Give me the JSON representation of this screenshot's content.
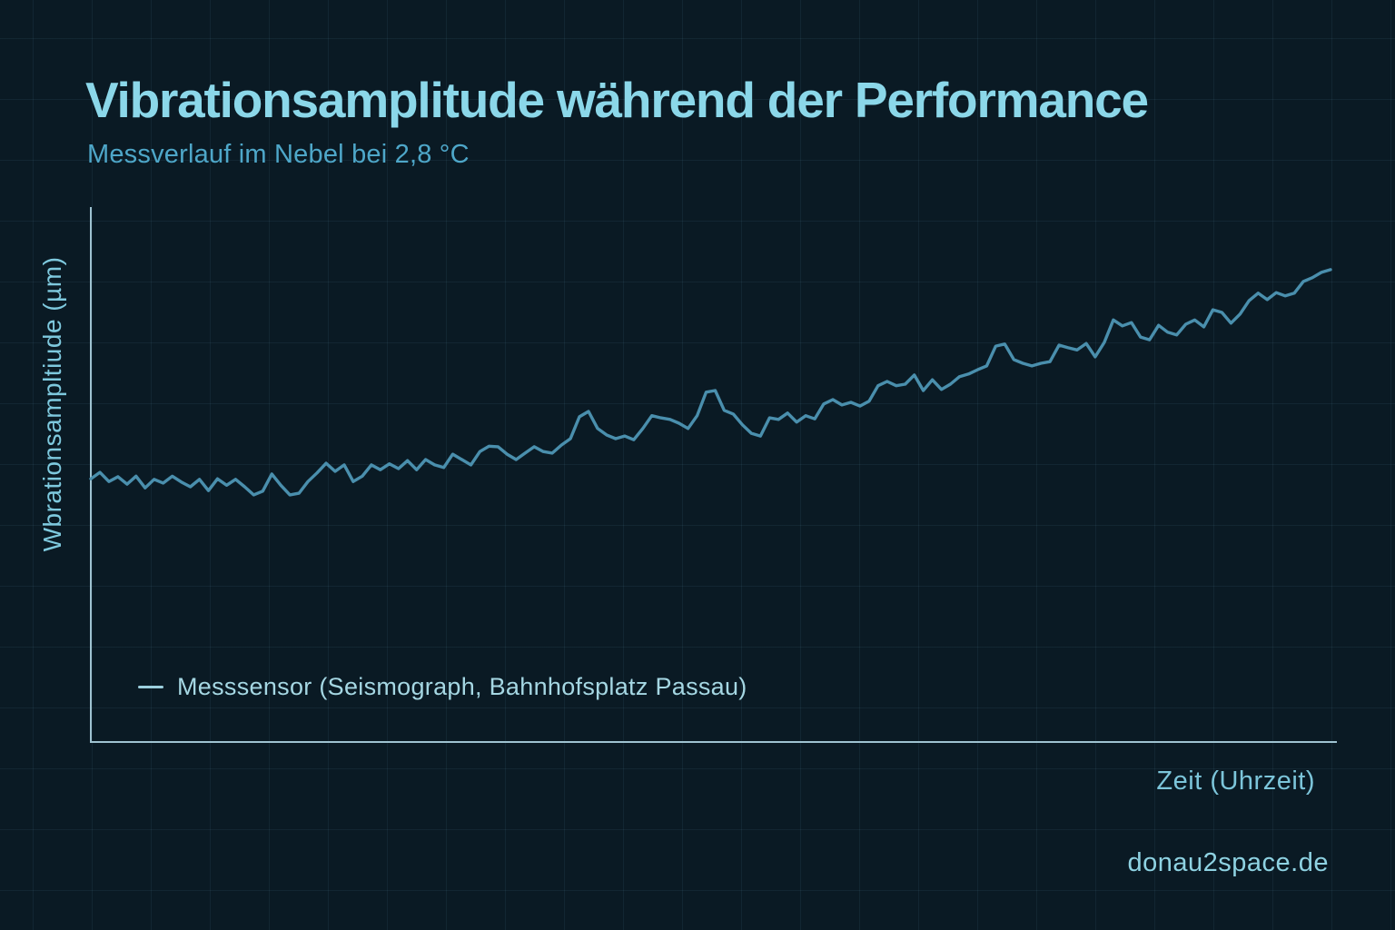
{
  "header": {
    "title": "Vibrationsamplitude während der Performance",
    "subtitle": "Messverlauf im Nebel bei 2,8 °C"
  },
  "chart": {
    "y_axis_label": "Wbrationsampltiude (µm)",
    "x_axis_label": "Zeit (Uhrzeit)",
    "legend": [
      {
        "label": "Messsensor (Seismograph, Bahnhofsplatz Passau)",
        "marker": "line-dash",
        "marker_color": "#9ccfde"
      }
    ]
  },
  "footer": {
    "website": "donau2space.de"
  },
  "colors": {
    "background": "#0a1a24",
    "grid": "rgba(122,184,214,0.08)",
    "title": "#8bd7e9",
    "subtitle": "#4ea7c9",
    "axis_line": "#9fc3d1",
    "axis_label": "#7ec9de",
    "legend_text": "#a5d7e3",
    "series_line": "#4a8fad",
    "website_text": "#8ed2e2"
  },
  "chart_data": {
    "type": "line",
    "title": "Vibrationsamplitude während der Performance",
    "subtitle": "Messverlauf im Nebel bei 2,8 °C",
    "xlabel": "Zeit (Uhrzeit)",
    "ylabel": "Wbrationsampltiude (µm)",
    "legend_position": "bottom-left-inside-plot",
    "grid": true,
    "axis_tick_labels_shown": false,
    "ylim": [
      0,
      1
    ],
    "y_units": "relative amplitude (no numeric scale shown in image)",
    "series": [
      {
        "name": "Messsensor (Seismograph, Bahnhofsplatz Passau)",
        "values": [
          0.492,
          0.504,
          0.487,
          0.496,
          0.482,
          0.497,
          0.475,
          0.491,
          0.484,
          0.497,
          0.486,
          0.477,
          0.491,
          0.47,
          0.492,
          0.48,
          0.491,
          0.477,
          0.462,
          0.469,
          0.501,
          0.48,
          0.462,
          0.465,
          0.487,
          0.503,
          0.521,
          0.506,
          0.518,
          0.487,
          0.497,
          0.518,
          0.509,
          0.52,
          0.511,
          0.526,
          0.509,
          0.528,
          0.518,
          0.513,
          0.538,
          0.528,
          0.518,
          0.543,
          0.553,
          0.552,
          0.538,
          0.528,
          0.54,
          0.552,
          0.543,
          0.54,
          0.555,
          0.567,
          0.608,
          0.618,
          0.586,
          0.574,
          0.567,
          0.572,
          0.565,
          0.586,
          0.61,
          0.606,
          0.603,
          0.596,
          0.586,
          0.61,
          0.654,
          0.657,
          0.62,
          0.613,
          0.593,
          0.577,
          0.572,
          0.606,
          0.603,
          0.615,
          0.598,
          0.61,
          0.604,
          0.632,
          0.64,
          0.63,
          0.635,
          0.628,
          0.637,
          0.666,
          0.674,
          0.666,
          0.669,
          0.686,
          0.657,
          0.677,
          0.659,
          0.669,
          0.683,
          0.688,
          0.696,
          0.703,
          0.74,
          0.744,
          0.715,
          0.708,
          0.703,
          0.708,
          0.711,
          0.742,
          0.737,
          0.733,
          0.745,
          0.72,
          0.747,
          0.789,
          0.778,
          0.784,
          0.757,
          0.752,
          0.779,
          0.766,
          0.761,
          0.781,
          0.789,
          0.776,
          0.808,
          0.803,
          0.783,
          0.8,
          0.825,
          0.839,
          0.827,
          0.84,
          0.834,
          0.839,
          0.861,
          0.868,
          0.878,
          0.883
        ]
      }
    ]
  }
}
